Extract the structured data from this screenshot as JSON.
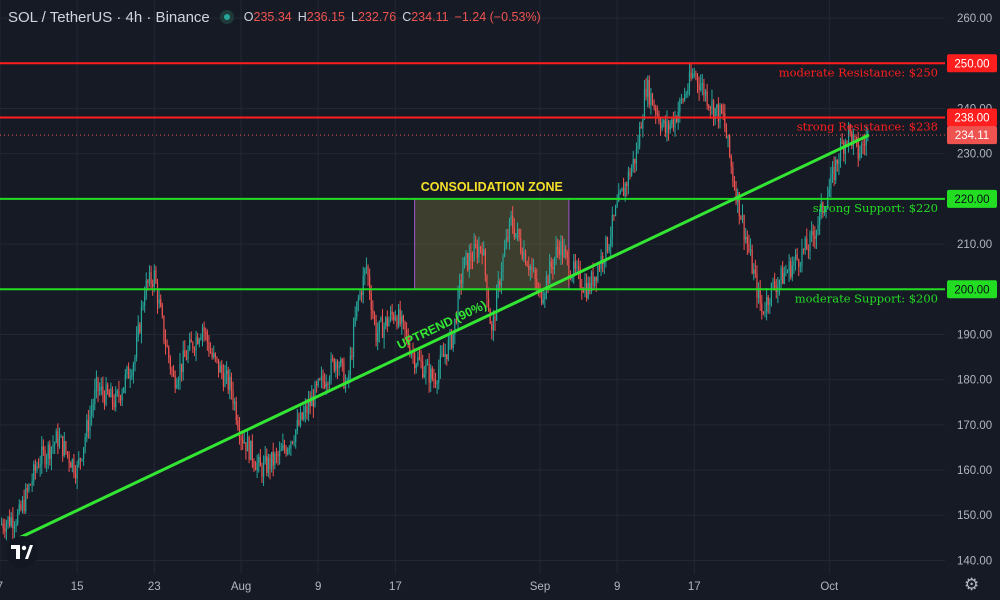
{
  "header": {
    "symbol": "SOL / TetherUS · 4h · Binance",
    "ohlc": {
      "o_label": "O",
      "o": "235.34",
      "h_label": "H",
      "h": "236.15",
      "l_label": "L",
      "l": "232.76",
      "c_label": "C",
      "c": "234.11",
      "change": "−1.24 (−0.53%)"
    }
  },
  "colors": {
    "background": "#161a25",
    "up": "#26a69a",
    "down": "#ef5350",
    "resistance": "#ff1e1e",
    "support": "#22dd22",
    "trend": "#33e633",
    "zone_label": "#f5e02a"
  },
  "icons": {
    "logo": "tradingview-logo-icon",
    "settings": "gear-icon"
  },
  "chart_data": {
    "type": "candlestick",
    "title": "SOL / TetherUS · 4h · Binance",
    "y_axis": {
      "ticks": [
        "140.00",
        "150.00",
        "160.00",
        "170.00",
        "180.00",
        "190.00",
        "200.00",
        "210.00",
        "220.00",
        "230.00",
        "240.00",
        "250.00",
        "260.00"
      ],
      "range": [
        137,
        264
      ]
    },
    "x_axis": {
      "ticks": [
        {
          "label": "7",
          "day": 0
        },
        {
          "label": "15",
          "day": 8
        },
        {
          "label": "23",
          "day": 16
        },
        {
          "label": "Aug",
          "day": 25
        },
        {
          "label": "9",
          "day": 33
        },
        {
          "label": "17",
          "day": 41
        },
        {
          "label": "Sep",
          "day": 56
        },
        {
          "label": "9",
          "day": 64
        },
        {
          "label": "17",
          "day": 72
        },
        {
          "label": "Oct",
          "day": 86
        }
      ],
      "range_days": [
        0,
        98
      ]
    },
    "candles_per_day": 6,
    "path": [
      [
        0,
        148
      ],
      [
        2,
        150
      ],
      [
        4,
        162
      ],
      [
        6,
        167
      ],
      [
        8,
        160
      ],
      [
        10,
        178
      ],
      [
        12,
        175
      ],
      [
        14,
        185
      ],
      [
        15,
        200
      ],
      [
        16,
        203
      ],
      [
        17,
        190
      ],
      [
        18,
        180
      ],
      [
        20,
        188
      ],
      [
        21,
        192
      ],
      [
        22,
        185
      ],
      [
        24,
        178
      ],
      [
        25,
        168
      ],
      [
        27,
        160
      ],
      [
        29,
        163
      ],
      [
        31,
        170
      ],
      [
        33,
        178
      ],
      [
        35,
        185
      ],
      [
        36,
        178
      ],
      [
        37,
        196
      ],
      [
        38,
        205
      ],
      [
        39,
        190
      ],
      [
        41,
        195
      ],
      [
        43,
        185
      ],
      [
        45,
        180
      ],
      [
        47,
        190
      ],
      [
        48,
        205
      ],
      [
        50,
        210
      ],
      [
        51,
        190
      ],
      [
        52,
        205
      ],
      [
        53,
        215
      ],
      [
        55,
        205
      ],
      [
        56,
        198
      ],
      [
        58,
        210
      ],
      [
        59,
        205
      ],
      [
        61,
        200
      ],
      [
        63,
        210
      ],
      [
        64,
        218
      ],
      [
        66,
        230
      ],
      [
        67,
        245
      ],
      [
        68,
        240
      ],
      [
        69,
        235
      ],
      [
        70,
        238
      ],
      [
        72,
        248
      ],
      [
        74,
        240
      ],
      [
        75,
        238
      ],
      [
        76,
        225
      ],
      [
        77,
        215
      ],
      [
        78,
        205
      ],
      [
        79,
        195
      ],
      [
        80,
        200
      ],
      [
        82,
        205
      ],
      [
        84,
        210
      ],
      [
        86,
        222
      ],
      [
        87,
        230
      ],
      [
        88,
        235
      ],
      [
        89,
        230
      ],
      [
        90,
        234
      ]
    ],
    "levels": [
      {
        "label": "moderate Resistance: $250",
        "price": 250.0,
        "price_label": "250.00",
        "kind": "resistance"
      },
      {
        "label": "strong Resistance: $238",
        "price": 238.0,
        "price_label": "238.00",
        "kind": "resistance"
      },
      {
        "label": "strong Support: $220",
        "price": 220.0,
        "price_label": "220.00",
        "kind": "support"
      },
      {
        "label": "moderate Support: $200",
        "price": 200.0,
        "price_label": "200.00",
        "kind": "support"
      }
    ],
    "last_price": {
      "value": 234.11,
      "label": "234.11"
    },
    "trendline": {
      "label": "UPTREND (90%)",
      "from": {
        "day": 2,
        "price": 145
      },
      "to": {
        "day": 90,
        "price": 234
      }
    },
    "zone": {
      "label": "CONSOLIDATION ZONE",
      "from_day": 43,
      "to_day": 59,
      "low": 200,
      "high": 220
    }
  }
}
